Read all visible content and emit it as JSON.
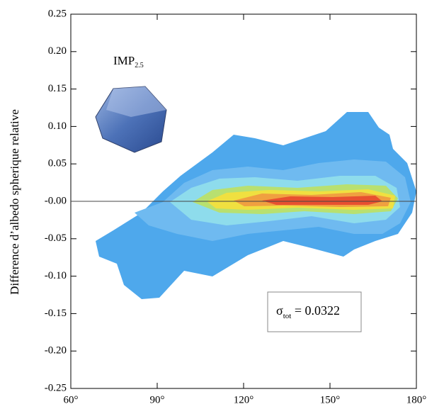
{
  "chart_data": {
    "type": "density",
    "y_label": "Difference d’albedo spherique relative",
    "xlim": [
      60,
      180
    ],
    "xticks": [
      {
        "value": 60,
        "label": "60°"
      },
      {
        "value": 90,
        "label": "90°"
      },
      {
        "value": 120,
        "label": "120°"
      },
      {
        "value": 150,
        "label": "150°"
      },
      {
        "value": 180,
        "label": "180°"
      }
    ],
    "ylim": [
      -0.25,
      0.25
    ],
    "yticks": [
      {
        "value": -0.25,
        "label": "-0.25"
      },
      {
        "value": -0.2,
        "label": "-0.20"
      },
      {
        "value": -0.15,
        "label": "-0.15"
      },
      {
        "value": -0.1,
        "label": "-0.10"
      },
      {
        "value": -0.05,
        "label": "-0.05"
      },
      {
        "value": 0,
        "label": "-0.00"
      },
      {
        "value": 0.05,
        "label": "0.05"
      },
      {
        "value": 0.1,
        "label": "0.10"
      },
      {
        "value": 0.15,
        "label": "0.15"
      },
      {
        "value": 0.2,
        "label": "0.20"
      },
      {
        "value": 0.25,
        "label": "0.25"
      }
    ],
    "particle_label": {
      "text": "IMP",
      "subscript": "2.5"
    },
    "sigma_label": {
      "symbol": "σ",
      "subscript": "tot",
      "text": " = 0.0322"
    }
  }
}
